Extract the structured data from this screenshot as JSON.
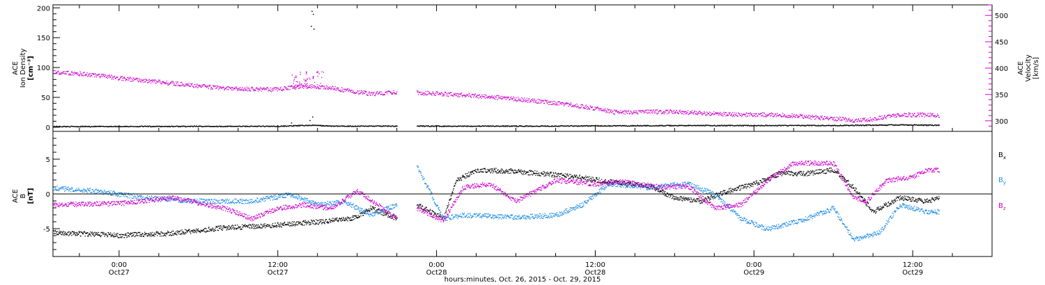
{
  "chart_data": [
    {
      "type": "scatter",
      "panel": "ion-density-velocity",
      "ylabel_left": [
        "ACE",
        "Ion Density",
        "[cm⁻³]"
      ],
      "ylabel_right": [
        "ACE",
        "Velocity",
        "[km/s]"
      ],
      "ylim_left": [
        -7,
        205
      ],
      "ylim_right": [
        280,
        520
      ],
      "yticks_left": [
        "0",
        "50",
        "100",
        "150",
        "200"
      ],
      "yticks_right": [
        "300",
        "350",
        "400",
        "450",
        "500"
      ],
      "xlim_hours": [
        -5,
        66
      ],
      "series": [
        {
          "id": "density",
          "axis": "left",
          "color": "#000000",
          "data_gap": [
            [
              -5,
              1.8
            ],
            [
              4,
              2.0
            ],
            [
              12,
              2.2
            ],
            [
              14.6,
              4.0
            ],
            [
              16,
              2.5
            ],
            [
              21,
              2.5
            ]
          ],
          "data": [
            [
              22.5,
              2.5
            ],
            [
              30,
              2.5
            ],
            [
              36,
              3.0
            ],
            [
              45,
              3.5
            ],
            [
              54,
              3.5
            ],
            [
              59.3,
              4.5
            ],
            [
              62,
              4.0
            ]
          ]
        },
        {
          "id": "velocity",
          "axis": "right",
          "color": "#cc00cc",
          "data_gap": [
            [
              -5,
              393
            ],
            [
              -3,
              390
            ],
            [
              0,
              382
            ],
            [
              4,
              372
            ],
            [
              8,
              362
            ],
            [
              12,
              360
            ],
            [
              14,
              368
            ],
            [
              16,
              363
            ],
            [
              19,
              352
            ],
            [
              21,
              355
            ]
          ],
          "data": [
            [
              22.5,
              354
            ],
            [
              26,
              350
            ],
            [
              30,
              342
            ],
            [
              34,
              332
            ],
            [
              36,
              324
            ],
            [
              37.5,
              317
            ],
            [
              42,
              318
            ],
            [
              46,
              313
            ],
            [
              50,
              312
            ],
            [
              54,
              305
            ],
            [
              56,
              301
            ],
            [
              59,
              312
            ],
            [
              61.5,
              312
            ],
            [
              62,
              309
            ]
          ]
        }
      ]
    },
    {
      "type": "scatter",
      "panel": "magnetic-field",
      "ylabel": [
        "ACE",
        "B",
        "[nT]"
      ],
      "ylim": [
        -9,
        9
      ],
      "yticks": [
        "-5",
        "0",
        "5"
      ],
      "xlim_hours": [
        -5,
        66
      ],
      "zero_line": true,
      "series": [
        {
          "name": "Bx",
          "color": "#000000",
          "data_gap": [
            [
              -5,
              -5.5
            ],
            [
              0,
              -5.9
            ],
            [
              4,
              -5.6
            ],
            [
              8,
              -4.8
            ],
            [
              12,
              -4.4
            ],
            [
              16,
              -3.8
            ],
            [
              18,
              -3.3
            ],
            [
              19,
              -2.0
            ],
            [
              21,
              -3.5
            ]
          ],
          "data": [
            [
              22.5,
              -1.5
            ],
            [
              24.5,
              -3.5
            ],
            [
              25.5,
              2.0
            ],
            [
              27,
              3.5
            ],
            [
              30,
              3.3
            ],
            [
              33,
              2.8
            ],
            [
              35,
              2.4
            ],
            [
              37,
              1.8
            ],
            [
              40,
              1.2
            ],
            [
              42,
              -0.5
            ],
            [
              44,
              -1.0
            ],
            [
              46,
              0.5
            ],
            [
              48,
              1.5
            ],
            [
              50,
              3.0
            ],
            [
              52,
              3.0
            ],
            [
              54,
              3.5
            ],
            [
              55.5,
              1.0
            ],
            [
              57,
              -2.5
            ],
            [
              59,
              -0.5
            ],
            [
              61,
              -1.0
            ],
            [
              62,
              -0.5
            ]
          ]
        },
        {
          "name": "By",
          "color": "#1e8ce6",
          "data_gap": [
            [
              -5,
              0.9
            ],
            [
              -2,
              0.5
            ],
            [
              2,
              -0.5
            ],
            [
              6,
              -1.0
            ],
            [
              10,
              -1.0
            ],
            [
              13,
              0.0
            ],
            [
              15,
              -1.5
            ],
            [
              17,
              -1.0
            ],
            [
              19,
              -3.0
            ],
            [
              21,
              -1.5
            ]
          ],
          "data": [
            [
              22.5,
              4.0
            ],
            [
              24.5,
              -3.5
            ],
            [
              26,
              -3.0
            ],
            [
              30,
              -3.3
            ],
            [
              33,
              -3.0
            ],
            [
              35,
              -1.5
            ],
            [
              37,
              1.5
            ],
            [
              40,
              1.0
            ],
            [
              43,
              1.5
            ],
            [
              45,
              0.0
            ],
            [
              47,
              -3.5
            ],
            [
              49,
              -5.0
            ],
            [
              52,
              -3.5
            ],
            [
              54,
              -2.0
            ],
            [
              55.5,
              -6.5
            ],
            [
              57.5,
              -5.5
            ],
            [
              59,
              -1.5
            ],
            [
              61,
              -2.5
            ],
            [
              62,
              -2.5
            ]
          ]
        },
        {
          "name": "Bz",
          "color": "#cc00cc",
          "data_gap": [
            [
              -5,
              -1.5
            ],
            [
              0,
              -1.3
            ],
            [
              4,
              -0.5
            ],
            [
              8,
              -2.0
            ],
            [
              10,
              -3.5
            ],
            [
              12,
              -2.0
            ],
            [
              14,
              -1.5
            ],
            [
              16,
              -2.0
            ],
            [
              18,
              0.5
            ],
            [
              21,
              -3.5
            ]
          ],
          "data": [
            [
              22.5,
              -2.0
            ],
            [
              24.5,
              -3.8
            ],
            [
              26,
              1.0
            ],
            [
              28,
              1.5
            ],
            [
              30,
              -1.0
            ],
            [
              33,
              2.0
            ],
            [
              36,
              1.5
            ],
            [
              38,
              1.8
            ],
            [
              41,
              1.0
            ],
            [
              43,
              1.2
            ],
            [
              45,
              -2.0
            ],
            [
              47,
              -1.5
            ],
            [
              49,
              2.0
            ],
            [
              51,
              4.5
            ],
            [
              54,
              4.5
            ],
            [
              55.5,
              -0.5
            ],
            [
              56.5,
              -1.0
            ],
            [
              58,
              2.0
            ],
            [
              60,
              2.5
            ],
            [
              61,
              3.5
            ],
            [
              62,
              3.5
            ]
          ]
        }
      ]
    }
  ],
  "legend": {
    "bx": "B",
    "bx_sub": "x",
    "by": "B",
    "by_sub": "y",
    "bz": "B",
    "bz_sub": "z"
  },
  "x_axis": {
    "major_ticks": [
      {
        "hour": 0,
        "time": "0:00",
        "date": "Oct27"
      },
      {
        "hour": 12,
        "time": "12:00",
        "date": "Oct27"
      },
      {
        "hour": 24,
        "time": "0:00",
        "date": "Oct28"
      },
      {
        "hour": 36,
        "time": "12:00",
        "date": "Oct28"
      },
      {
        "hour": 48,
        "time": "0:00",
        "date": "Oct29"
      },
      {
        "hour": 60,
        "time": "12:00",
        "date": "Oct29"
      }
    ],
    "title": "hours:minutes, Oct. 26, 2015 - Oct. 29, 2015"
  },
  "colors": {
    "black": "#000000",
    "magenta": "#cc00cc",
    "blue": "#1e8ce6"
  }
}
